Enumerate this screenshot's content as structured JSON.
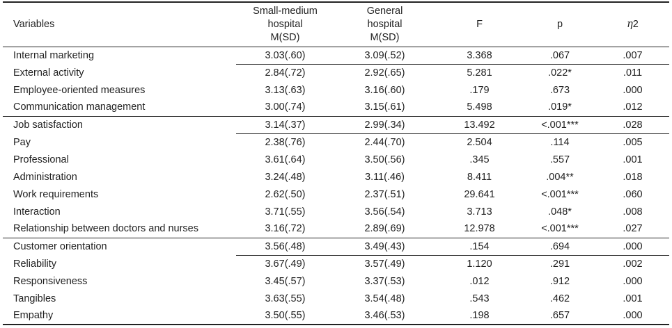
{
  "header": {
    "variables": "Variables",
    "small_medium": [
      "Small-medium",
      "hospital",
      "M(SD)"
    ],
    "general": [
      "General",
      "hospital",
      "M(SD)"
    ],
    "f": "F",
    "p": "p",
    "eta_symbol": "η",
    "eta_suffix": "2"
  },
  "rows": [
    {
      "label": "Internal marketing",
      "sm": "3.03(.60)",
      "gh": "3.09(.52)",
      "f": "3.368",
      "p": ".067",
      "eta": ".007",
      "type": "grouphead",
      "topline": true
    },
    {
      "label": "External activity",
      "sm": "2.84(.72)",
      "gh": "2.92(.65)",
      "f": "5.281",
      "p": ".022*",
      "eta": ".011",
      "type": "sub"
    },
    {
      "label": "Employee-oriented measures",
      "sm": "3.13(.63)",
      "gh": "3.16(.60)",
      "f": ".179",
      "p": ".673",
      "eta": ".000",
      "type": "sub"
    },
    {
      "label": "Communication management",
      "sm": "3.00(.74)",
      "gh": "3.15(.61)",
      "f": "5.498",
      "p": ".019*",
      "eta": ".012",
      "type": "sub"
    },
    {
      "label": "Job satisfaction",
      "sm": "3.14(.37)",
      "gh": "2.99(.34)",
      "f": "13.492",
      "p": "<.001***",
      "eta": ".028",
      "type": "grouphead",
      "topline": true
    },
    {
      "label": "Pay",
      "sm": "2.38(.76)",
      "gh": "2.44(.70)",
      "f": "2.504",
      "p": ".114",
      "eta": ".005",
      "type": "sub"
    },
    {
      "label": "Professional",
      "sm": "3.61(.64)",
      "gh": "3.50(.56)",
      "f": ".345",
      "p": ".557",
      "eta": ".001",
      "type": "sub"
    },
    {
      "label": "Administration",
      "sm": "3.24(.48)",
      "gh": "3.11(.46)",
      "f": "8.411",
      "p": ".004**",
      "eta": ".018",
      "type": "sub"
    },
    {
      "label": "Work requirements",
      "sm": "2.62(.50)",
      "gh": "2.37(.51)",
      "f": "29.641",
      "p": "<.001***",
      "eta": ".060",
      "type": "sub"
    },
    {
      "label": "Interaction",
      "sm": "3.71(.55)",
      "gh": "3.56(.54)",
      "f": "3.713",
      "p": ".048*",
      "eta": ".008",
      "type": "sub"
    },
    {
      "label": "Relationship between doctors and nurses",
      "sm": "3.16(.72)",
      "gh": "2.89(.69)",
      "f": "12.978",
      "p": "<.001***",
      "eta": ".027",
      "type": "sub"
    },
    {
      "label": "Customer orientation",
      "sm": "3.56(.48)",
      "gh": "3.49(.43)",
      "f": ".154",
      "p": ".694",
      "eta": ".000",
      "type": "grouphead",
      "topline": true
    },
    {
      "label": "Reliability",
      "sm": "3.67(.49)",
      "gh": "3.57(.49)",
      "f": "1.120",
      "p": ".291",
      "eta": ".002",
      "type": "sub"
    },
    {
      "label": "Responsiveness",
      "sm": "3.45(.57)",
      "gh": "3.37(.53)",
      "f": ".012",
      "p": ".912",
      "eta": ".000",
      "type": "sub"
    },
    {
      "label": "Tangibles",
      "sm": "3.63(.55)",
      "gh": "3.54(.48)",
      "f": ".543",
      "p": ".462",
      "eta": ".001",
      "type": "sub"
    },
    {
      "label": "Empathy",
      "sm": "3.50(.55)",
      "gh": "3.46(.53)",
      "f": ".198",
      "p": ".657",
      "eta": ".000",
      "type": "sub",
      "last": true
    }
  ]
}
